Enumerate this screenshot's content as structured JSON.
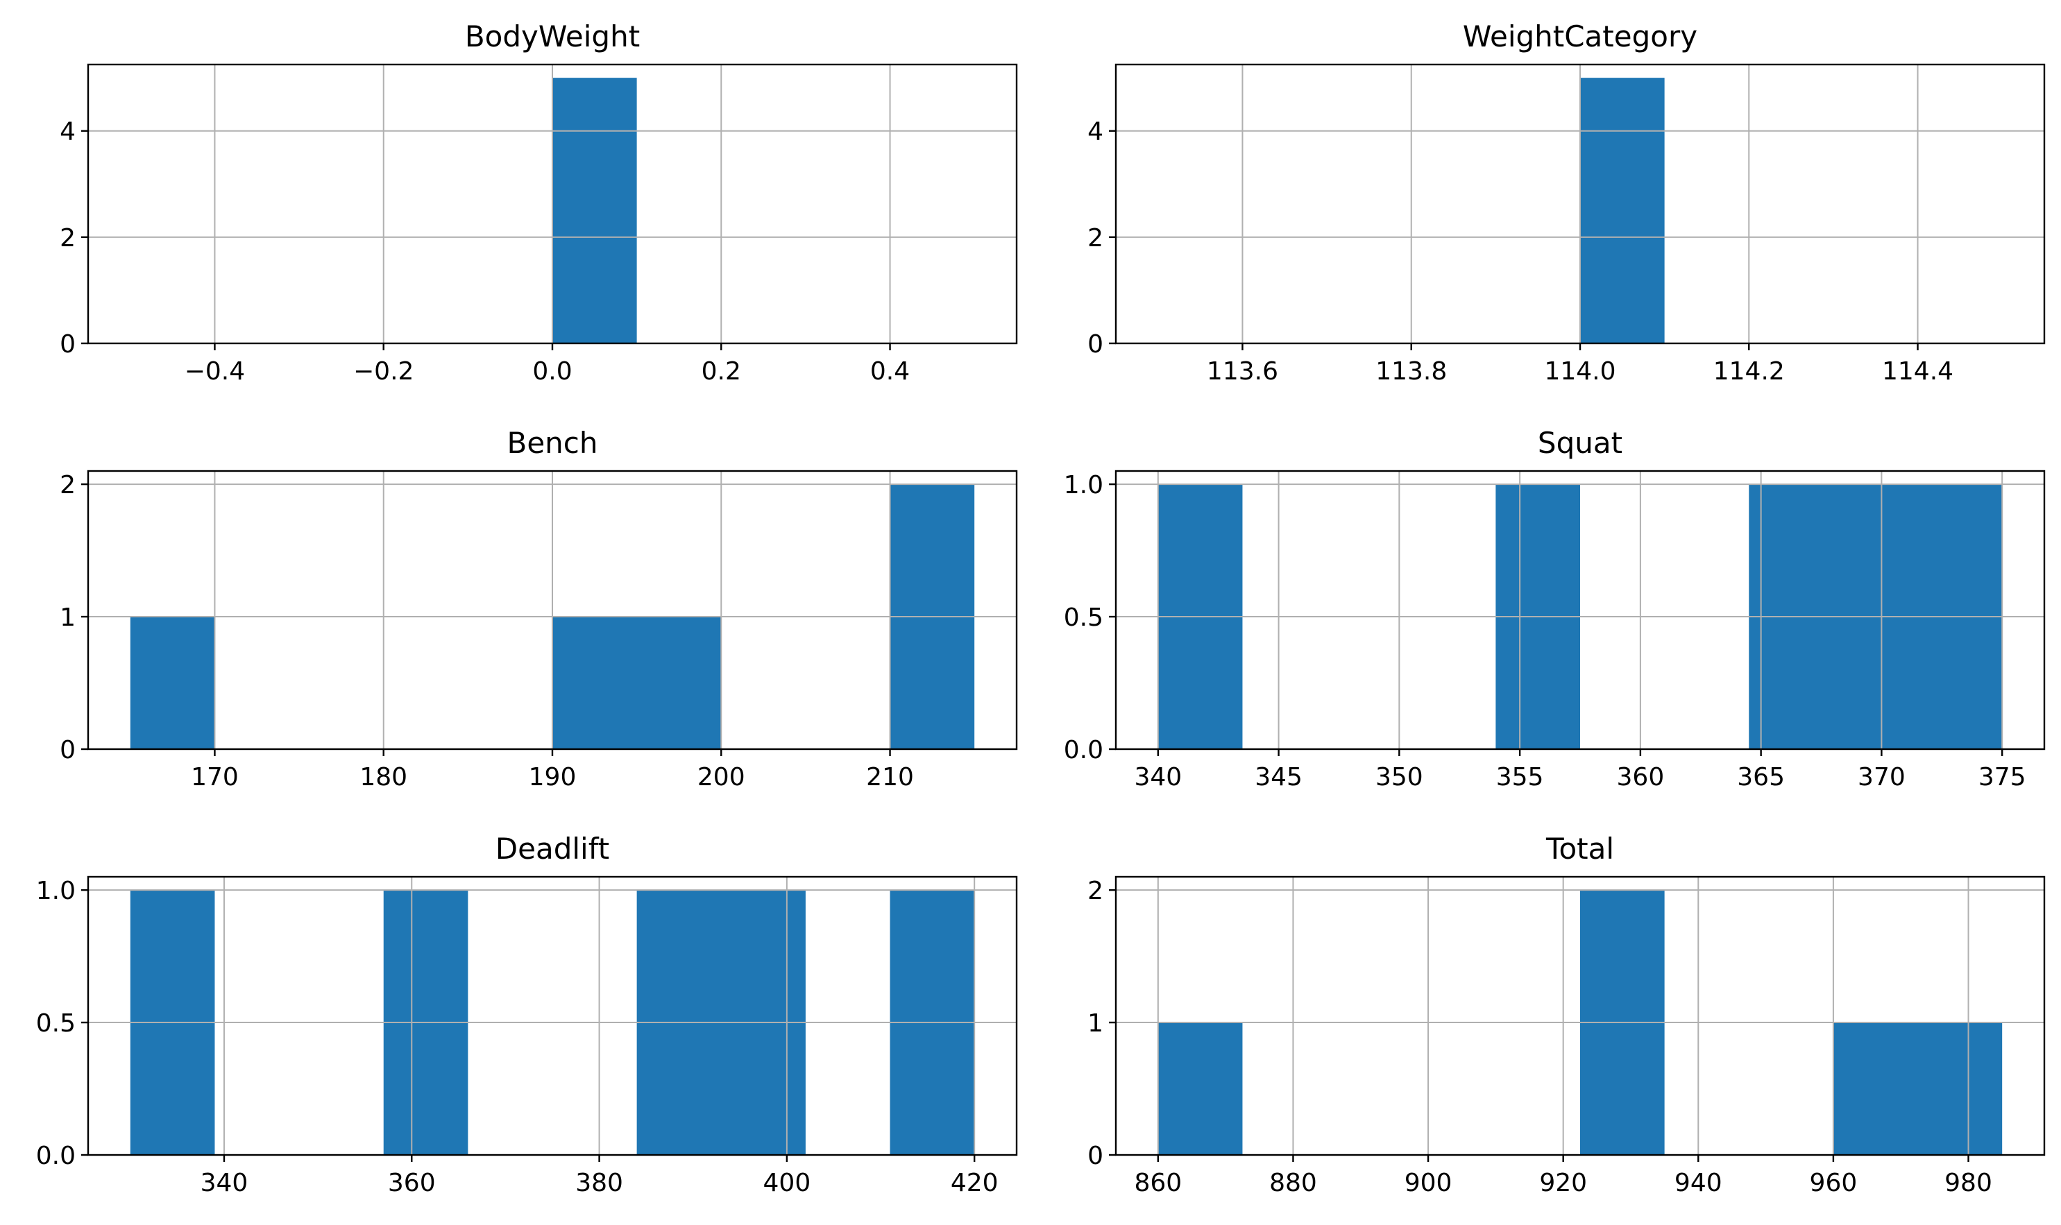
{
  "chart_data": [
    {
      "type": "bar",
      "title": "BodyWeight",
      "bars": [
        {
          "x0": 0.0,
          "x1": 0.1,
          "count": 5
        }
      ],
      "xlim": [
        -0.55,
        0.55
      ],
      "ylim": [
        0,
        5.25
      ],
      "xticks": [
        -0.4,
        -0.2,
        0.0,
        0.2,
        0.4
      ],
      "xticklabels": [
        "−0.4",
        "−0.2",
        "0.0",
        "0.2",
        "0.4"
      ],
      "yticks": [
        0,
        2,
        4
      ],
      "yticklabels": [
        "0",
        "2",
        "4"
      ],
      "grid": true
    },
    {
      "type": "bar",
      "title": "WeightCategory",
      "bars": [
        {
          "x0": 114.0,
          "x1": 114.1,
          "count": 5
        }
      ],
      "xlim": [
        113.45,
        114.55
      ],
      "ylim": [
        0,
        5.25
      ],
      "xticks": [
        113.6,
        113.8,
        114.0,
        114.2,
        114.4
      ],
      "xticklabels": [
        "113.6",
        "113.8",
        "114.0",
        "114.2",
        "114.4"
      ],
      "yticks": [
        0,
        2,
        4
      ],
      "yticklabels": [
        "0",
        "2",
        "4"
      ],
      "grid": true
    },
    {
      "type": "bar",
      "title": "Bench",
      "bars": [
        {
          "x0": 165,
          "x1": 170,
          "count": 1
        },
        {
          "x0": 190,
          "x1": 200,
          "count": 1
        },
        {
          "x0": 210,
          "x1": 215,
          "count": 2
        }
      ],
      "xlim": [
        162.5,
        217.5
      ],
      "ylim": [
        0,
        2.1
      ],
      "xticks": [
        170,
        180,
        190,
        200,
        210
      ],
      "xticklabels": [
        "170",
        "180",
        "190",
        "200",
        "210"
      ],
      "yticks": [
        0,
        1,
        2
      ],
      "yticklabels": [
        "0",
        "1",
        "2"
      ],
      "grid": true
    },
    {
      "type": "bar",
      "title": "Squat",
      "bars": [
        {
          "x0": 340,
          "x1": 343.5,
          "count": 1
        },
        {
          "x0": 354,
          "x1": 357.5,
          "count": 1
        },
        {
          "x0": 364.5,
          "x1": 375,
          "count": 1
        }
      ],
      "xlim": [
        338.25,
        376.75
      ],
      "ylim": [
        0,
        1.05
      ],
      "xticks": [
        340,
        345,
        350,
        355,
        360,
        365,
        370,
        375
      ],
      "xticklabels": [
        "340",
        "345",
        "350",
        "355",
        "360",
        "365",
        "370",
        "375"
      ],
      "yticks": [
        0,
        0.5,
        1.0
      ],
      "yticklabels": [
        "0.0",
        "0.5",
        "1.0"
      ],
      "grid": true
    },
    {
      "type": "bar",
      "title": "Deadlift",
      "bars": [
        {
          "x0": 330,
          "x1": 339,
          "count": 1
        },
        {
          "x0": 357,
          "x1": 366,
          "count": 1
        },
        {
          "x0": 384,
          "x1": 402,
          "count": 1
        },
        {
          "x0": 411,
          "x1": 420,
          "count": 1
        }
      ],
      "xlim": [
        325.5,
        424.5
      ],
      "ylim": [
        0,
        1.05
      ],
      "xticks": [
        340,
        360,
        380,
        400,
        420
      ],
      "xticklabels": [
        "340",
        "360",
        "380",
        "400",
        "420"
      ],
      "yticks": [
        0,
        0.5,
        1.0
      ],
      "yticklabels": [
        "0.0",
        "0.5",
        "1.0"
      ],
      "grid": true
    },
    {
      "type": "bar",
      "title": "Total",
      "bars": [
        {
          "x0": 860,
          "x1": 872.5,
          "count": 1
        },
        {
          "x0": 922.5,
          "x1": 935,
          "count": 2
        },
        {
          "x0": 960,
          "x1": 985,
          "count": 1
        }
      ],
      "xlim": [
        853.75,
        991.25
      ],
      "ylim": [
        0,
        2.1
      ],
      "xticks": [
        860,
        880,
        900,
        920,
        940,
        960,
        980
      ],
      "xticklabels": [
        "860",
        "880",
        "900",
        "920",
        "940",
        "960",
        "980"
      ],
      "yticks": [
        0,
        1,
        2
      ],
      "yticklabels": [
        "0",
        "1",
        "2"
      ],
      "grid": true
    }
  ],
  "colors": {
    "bar": "#1f77b4",
    "grid": "#b0b0b0",
    "axes": "#000000",
    "background": "#ffffff"
  }
}
